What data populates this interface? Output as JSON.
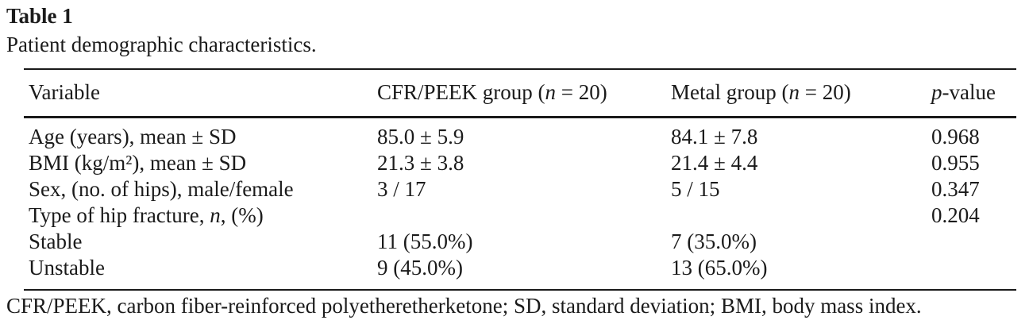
{
  "title": "Table 1",
  "caption": "Patient demographic characteristics.",
  "table": {
    "columns": [
      {
        "pre": "Variable"
      },
      {
        "pre": "CFR/PEEK group (",
        "it": "n",
        "post": " = 20)"
      },
      {
        "pre": "Metal group (",
        "it": "n",
        "post": " = 20)"
      },
      {
        "it": "p",
        "post": "-value"
      }
    ],
    "rows": [
      {
        "variable": {
          "pre": "Age (years), mean ± SD"
        },
        "cfr_peek": "85.0 ± 5.9",
        "metal": "84.1 ± 7.8",
        "p_value": "0.968"
      },
      {
        "variable": {
          "pre": "BMI (kg/m²), mean ± SD"
        },
        "cfr_peek": "21.3 ± 3.8",
        "metal": "21.4 ± 4.4",
        "p_value": "0.955"
      },
      {
        "variable": {
          "pre": "Sex, (no. of hips), male/female"
        },
        "cfr_peek": "3 / 17",
        "metal": "5 / 15",
        "p_value": "0.347"
      },
      {
        "variable": {
          "pre": "Type of hip fracture, ",
          "it": "n",
          "post": ", (%)"
        },
        "cfr_peek": "",
        "metal": "",
        "p_value": "0.204"
      },
      {
        "variable": {
          "pre": "Stable"
        },
        "cfr_peek": "11 (55.0%)",
        "metal": "7 (35.0%)",
        "p_value": ""
      },
      {
        "variable": {
          "pre": "Unstable"
        },
        "cfr_peek": "9 (45.0%)",
        "metal": "13 (65.0%)",
        "p_value": ""
      }
    ]
  },
  "footnote": "CFR/PEEK, carbon fiber-reinforced polyetheretherketone; SD, standard deviation; BMI, body mass index."
}
